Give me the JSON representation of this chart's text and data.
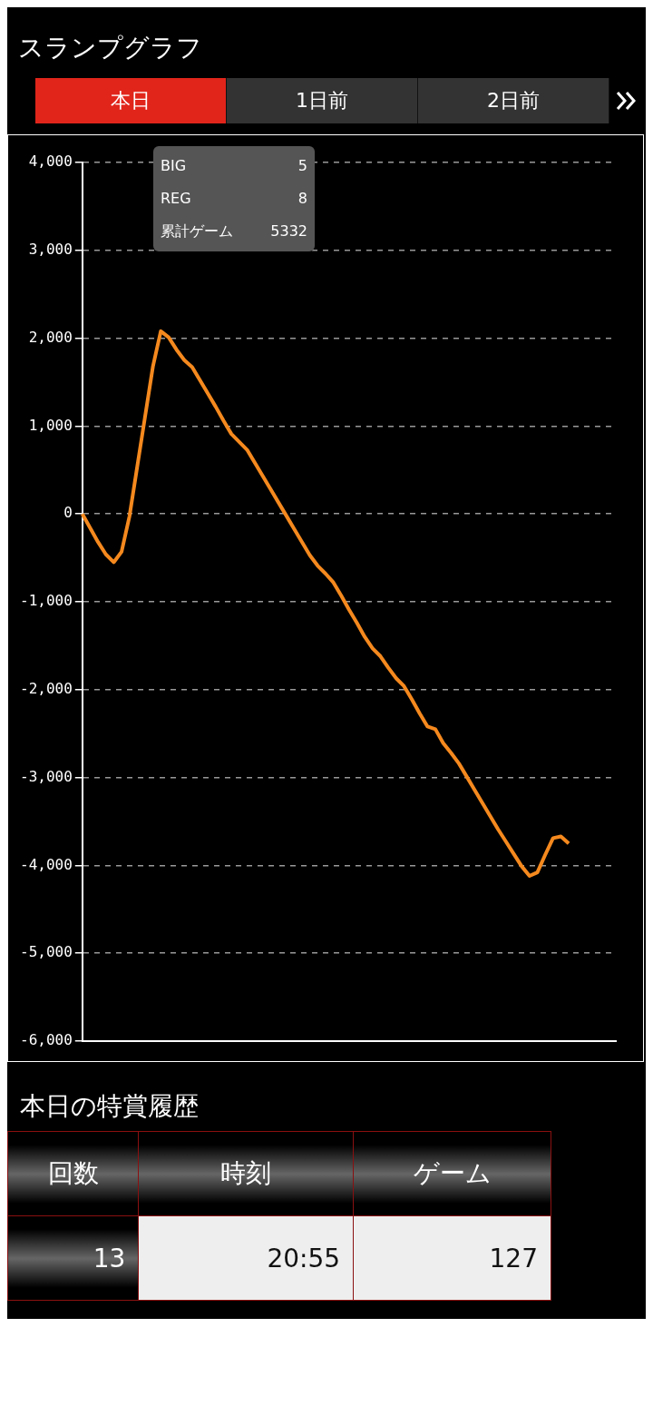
{
  "chart_data": {
    "type": "line",
    "title": "スランプグラフ",
    "categories": [
      null,
      null,
      null,
      null,
      null,
      null,
      null,
      null,
      null,
      null,
      null,
      null,
      null,
      null,
      null,
      null,
      null,
      null,
      null,
      null,
      null,
      null,
      null,
      null,
      null,
      null,
      null,
      null,
      null,
      null,
      null,
      null,
      null,
      null,
      null,
      null,
      null,
      null,
      null,
      null,
      null,
      null,
      null,
      null,
      null,
      null,
      null,
      null,
      null,
      null,
      null,
      null,
      null,
      null,
      null,
      null,
      null,
      null,
      null,
      null,
      null,
      null,
      null,
      null,
      null,
      null,
      null,
      null,
      null
    ],
    "series": [
      {
        "color": "#f5891e",
        "values": [
          0,
          -160,
          -320,
          -460,
          -550,
          -430,
          -30,
          540,
          1110,
          1680,
          2080,
          2010,
          1870,
          1750,
          1670,
          1520,
          1370,
          1220,
          1060,
          910,
          820,
          730,
          580,
          430,
          280,
          130,
          -20,
          -170,
          -320,
          -470,
          -590,
          -680,
          -780,
          -930,
          -1090,
          -1240,
          -1400,
          -1530,
          -1620,
          -1750,
          -1870,
          -1960,
          -2110,
          -2270,
          -2420,
          -2450,
          -2610,
          -2720,
          -2840,
          -2990,
          -3140,
          -3290,
          -3440,
          -3590,
          -3730,
          -3870,
          -4010,
          -4120,
          -4080,
          -3880,
          -3690,
          -3670,
          -3750,
          null,
          null,
          null,
          null,
          null,
          null
        ]
      }
    ],
    "ylim": [
      -6000,
      4000
    ],
    "yticks": [
      {
        "value": 4000,
        "label": "4,000"
      },
      {
        "value": 3000,
        "label": "3,000"
      },
      {
        "value": 2000,
        "label": "2,000"
      },
      {
        "value": 1000,
        "label": "1,000"
      },
      0,
      {
        "value": -1000,
        "label": "-1,000"
      },
      {
        "value": -2000,
        "label": "-2,000"
      },
      {
        "value": -3000,
        "label": "-3,000"
      },
      {
        "value": -4000,
        "label": "-4,000"
      },
      {
        "value": -5000,
        "label": "-5,000"
      },
      {
        "value": -6000,
        "label": "-6,000"
      }
    ],
    "grid": "y",
    "tick_labels": "y",
    "marker": "none",
    "line_style": "solid",
    "legend": false,
    "annotations": [
      "本日",
      "1日前",
      "2日前",
      "BIG 5",
      "REG 8",
      "累計ゲーム 5332",
      "本日の特賞履歴",
      "回数",
      "時刻",
      "ゲーム",
      "13",
      "20:55",
      "127"
    ]
  }
}
